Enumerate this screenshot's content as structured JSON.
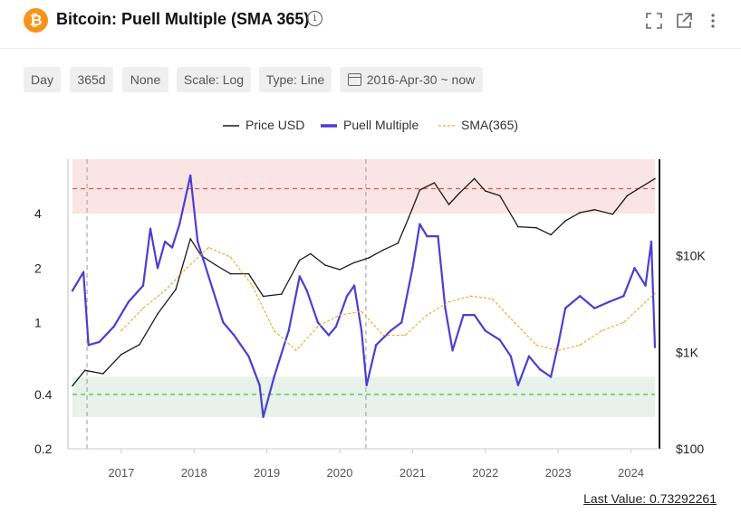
{
  "header": {
    "coin_glyph": "₿",
    "title": "Bitcoin: Puell Multiple (SMA 365)",
    "info_glyph": "i"
  },
  "toolbar": {
    "interval": "Day",
    "window": "365d",
    "smoothing": "None",
    "scale": "Scale: Log",
    "type": "Type: Line",
    "date_range": "2016-Apr-30 ~ now"
  },
  "footer": {
    "last_value_label": "Last Value: 0.73292261"
  },
  "colors": {
    "price": "#1a1a1a",
    "puell": "#4b3fd0",
    "sma": "#f5a623",
    "upper_zone": "#fbe4e4",
    "lower_zone": "#e6f2ea",
    "upper_line": "#e2574c",
    "lower_line": "#55b84e"
  },
  "chart_data": {
    "type": "line",
    "legend_position": "top-center",
    "left_axis": {
      "scale": "log",
      "range": [
        0.2,
        8
      ],
      "ticks": [
        0.2,
        0.4,
        1,
        2,
        4
      ],
      "tick_labels": [
        "0.2",
        "0.4",
        "1",
        "2",
        "4"
      ]
    },
    "right_axis": {
      "scale": "log",
      "range": [
        100,
        100000
      ],
      "ticks": [
        100,
        1000,
        10000
      ],
      "tick_labels": [
        "$100",
        "$1K",
        "$10K"
      ]
    },
    "x_axis": {
      "range": [
        2016.33,
        2024.33
      ],
      "ticks": [
        2017,
        2018,
        2019,
        2020,
        2021,
        2022,
        2023,
        2024
      ],
      "tick_labels": [
        "2017",
        "2018",
        "2019",
        "2020",
        "2021",
        "2022",
        "2023",
        "2024"
      ]
    },
    "zones": {
      "upper": {
        "from": 4,
        "to": 8,
        "line": 5.5
      },
      "lower": {
        "from": 0.3,
        "to": 0.5,
        "line": 0.4
      }
    },
    "halving_markers": [
      2016.53,
      2020.36
    ],
    "series": [
      {
        "name": "Price USD",
        "axis": "right",
        "x": [
          2016.33,
          2016.5,
          2016.75,
          2017.0,
          2017.25,
          2017.5,
          2017.75,
          2017.95,
          2018.1,
          2018.3,
          2018.5,
          2018.75,
          2018.95,
          2019.2,
          2019.45,
          2019.6,
          2019.8,
          2020.0,
          2020.2,
          2020.4,
          2020.6,
          2020.8,
          2020.95,
          2021.1,
          2021.3,
          2021.5,
          2021.65,
          2021.85,
          2022.0,
          2022.2,
          2022.45,
          2022.7,
          2022.9,
          2023.1,
          2023.3,
          2023.5,
          2023.75,
          2023.95,
          2024.15,
          2024.33
        ],
        "values": [
          450,
          650,
          600,
          950,
          1200,
          2500,
          4500,
          15000,
          10000,
          8000,
          6500,
          6500,
          3800,
          4000,
          9000,
          10500,
          8000,
          7200,
          8500,
          9500,
          11500,
          13500,
          25000,
          48000,
          57000,
          34000,
          45000,
          63000,
          47000,
          42000,
          20000,
          19500,
          16500,
          23000,
          28000,
          30000,
          27000,
          42000,
          52000,
          63000
        ]
      },
      {
        "name": "Puell Multiple",
        "axis": "left",
        "x": [
          2016.33,
          2016.48,
          2016.55,
          2016.7,
          2016.9,
          2017.1,
          2017.3,
          2017.4,
          2017.5,
          2017.6,
          2017.7,
          2017.8,
          2017.95,
          2018.05,
          2018.2,
          2018.4,
          2018.55,
          2018.75,
          2018.9,
          2018.95,
          2019.1,
          2019.3,
          2019.45,
          2019.55,
          2019.7,
          2019.85,
          2019.95,
          2020.1,
          2020.2,
          2020.3,
          2020.37,
          2020.5,
          2020.7,
          2020.85,
          2021.0,
          2021.1,
          2021.2,
          2021.35,
          2021.45,
          2021.55,
          2021.7,
          2021.85,
          2022.0,
          2022.2,
          2022.35,
          2022.45,
          2022.6,
          2022.75,
          2022.9,
          2023.0,
          2023.1,
          2023.3,
          2023.5,
          2023.7,
          2023.9,
          2024.05,
          2024.2,
          2024.28,
          2024.33
        ],
        "values": [
          1.5,
          1.9,
          0.75,
          0.78,
          0.95,
          1.3,
          1.6,
          3.3,
          2.0,
          2.8,
          2.6,
          3.5,
          6.5,
          2.8,
          1.8,
          1.0,
          0.85,
          0.65,
          0.45,
          0.3,
          0.5,
          0.9,
          1.8,
          1.5,
          1.0,
          0.85,
          0.95,
          1.4,
          1.6,
          0.9,
          0.45,
          0.75,
          0.9,
          1.0,
          2.0,
          3.5,
          3.0,
          3.0,
          1.2,
          0.7,
          1.1,
          1.1,
          0.9,
          0.8,
          0.65,
          0.45,
          0.65,
          0.55,
          0.5,
          0.75,
          1.2,
          1.4,
          1.2,
          1.3,
          1.4,
          2.0,
          1.6,
          2.8,
          0.73
        ]
      },
      {
        "name": "SMA(365)",
        "axis": "left",
        "x": [
          2017.0,
          2017.3,
          2017.6,
          2017.9,
          2018.2,
          2018.5,
          2018.8,
          2019.1,
          2019.4,
          2019.7,
          2020.0,
          2020.3,
          2020.6,
          2020.9,
          2021.2,
          2021.5,
          2021.8,
          2022.1,
          2022.4,
          2022.7,
          2023.0,
          2023.3,
          2023.6,
          2023.9,
          2024.2,
          2024.33
        ],
        "values": [
          0.9,
          1.2,
          1.5,
          2.0,
          2.6,
          2.3,
          1.6,
          0.9,
          0.7,
          0.95,
          1.1,
          1.15,
          0.85,
          0.85,
          1.1,
          1.3,
          1.4,
          1.35,
          1.0,
          0.75,
          0.7,
          0.75,
          0.9,
          1.0,
          1.3,
          1.45
        ]
      }
    ]
  }
}
